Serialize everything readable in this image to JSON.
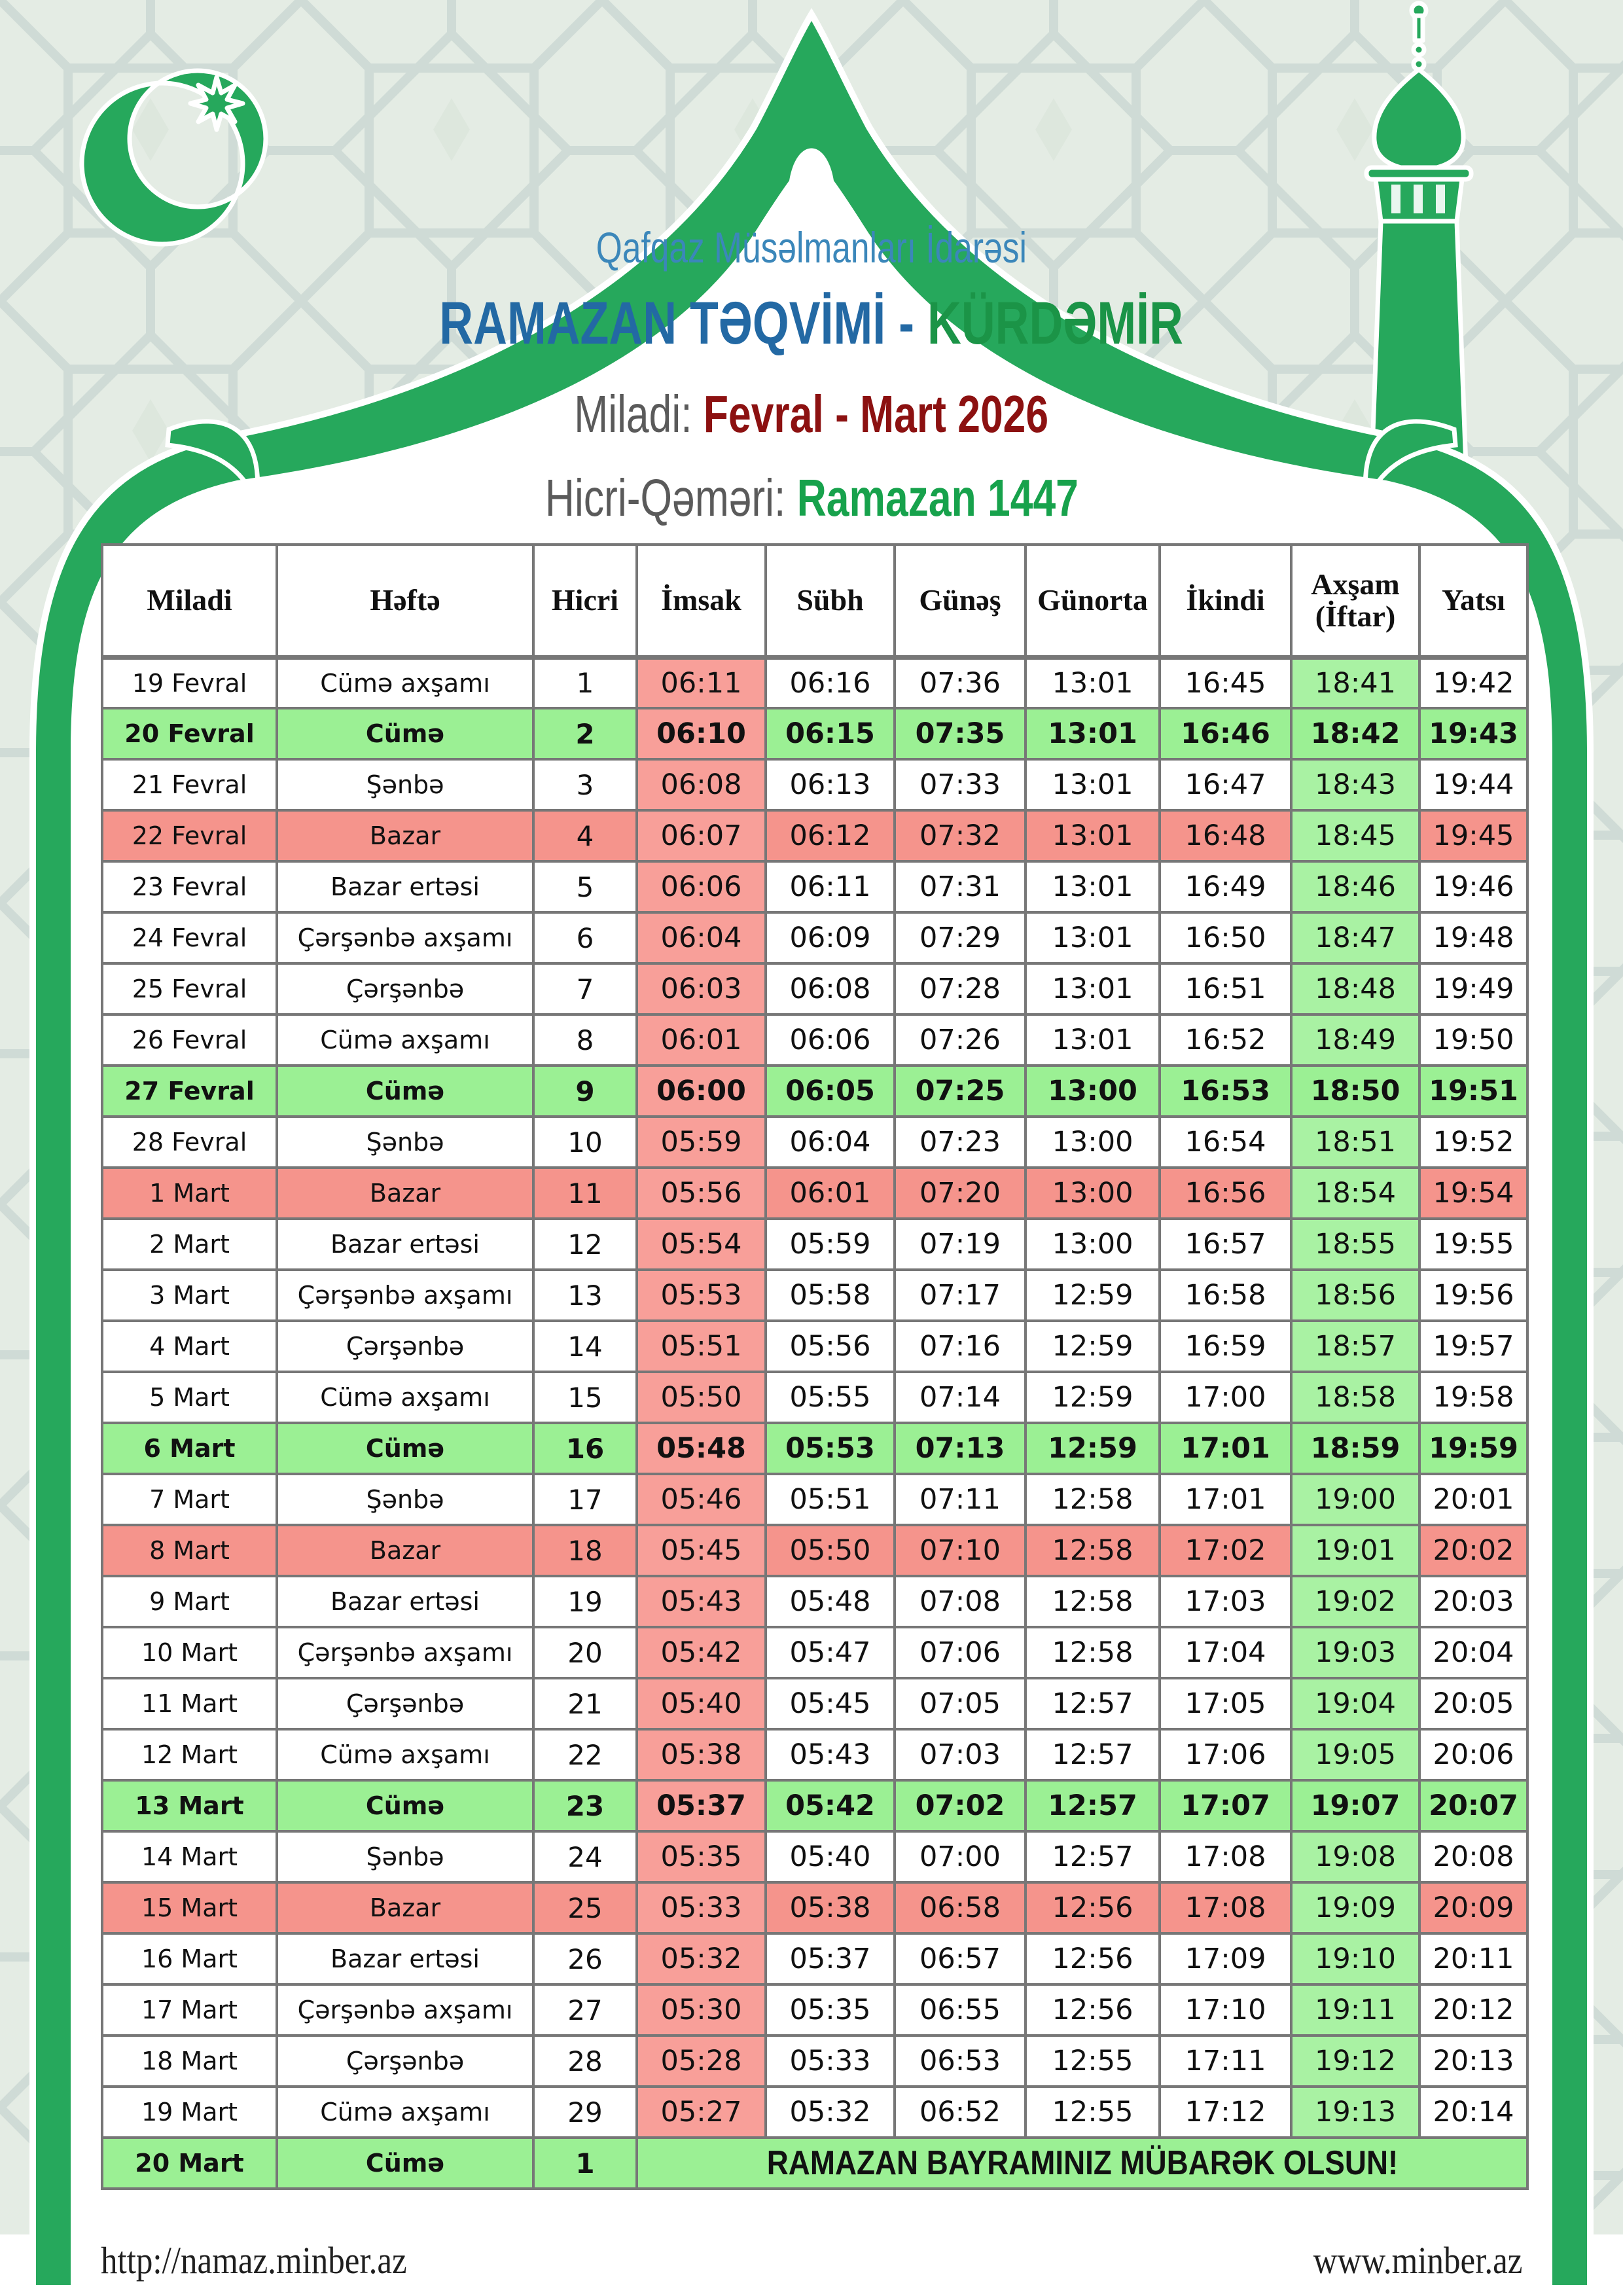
{
  "header": {
    "org": "Qafqaz Müsəlmanları İdarəsi",
    "title_main": "RAMAZAN TƏQVİMİ - ",
    "title_city": "KÜRDƏMİR",
    "miladi_label": "Miladi: ",
    "miladi_value": "Fevral - Mart 2026",
    "hicri_label": "Hicri-Qəməri: ",
    "hicri_value": "Ramazan 1447"
  },
  "table": {
    "headers": [
      "Miladi",
      "Həftə",
      "Hicri",
      "İmsak",
      "Sübh",
      "Günəş",
      "Günorta",
      "İkindi",
      "Axşam (İftar)",
      "Yatsı"
    ],
    "rows": [
      {
        "d": "19 Fevral",
        "w": "Cümə axşamı",
        "h": "1",
        "type": "normal",
        "t": [
          "06:11",
          "06:16",
          "07:36",
          "13:01",
          "16:45",
          "18:41",
          "19:42"
        ]
      },
      {
        "d": "20 Fevral",
        "w": "Cümə",
        "h": "2",
        "type": "friday",
        "t": [
          "06:10",
          "06:15",
          "07:35",
          "13:01",
          "16:46",
          "18:42",
          "19:43"
        ]
      },
      {
        "d": "21 Fevral",
        "w": "Şənbə",
        "h": "3",
        "type": "normal",
        "t": [
          "06:08",
          "06:13",
          "07:33",
          "13:01",
          "16:47",
          "18:43",
          "19:44"
        ]
      },
      {
        "d": "22 Fevral",
        "w": "Bazar",
        "h": "4",
        "type": "sunday",
        "t": [
          "06:07",
          "06:12",
          "07:32",
          "13:01",
          "16:48",
          "18:45",
          "19:45"
        ]
      },
      {
        "d": "23 Fevral",
        "w": "Bazar ertəsi",
        "h": "5",
        "type": "normal",
        "t": [
          "06:06",
          "06:11",
          "07:31",
          "13:01",
          "16:49",
          "18:46",
          "19:46"
        ]
      },
      {
        "d": "24 Fevral",
        "w": "Çərşənbə axşamı",
        "h": "6",
        "type": "normal",
        "t": [
          "06:04",
          "06:09",
          "07:29",
          "13:01",
          "16:50",
          "18:47",
          "19:48"
        ]
      },
      {
        "d": "25 Fevral",
        "w": "Çərşənbə",
        "h": "7",
        "type": "normal",
        "t": [
          "06:03",
          "06:08",
          "07:28",
          "13:01",
          "16:51",
          "18:48",
          "19:49"
        ]
      },
      {
        "d": "26 Fevral",
        "w": "Cümə axşamı",
        "h": "8",
        "type": "normal",
        "t": [
          "06:01",
          "06:06",
          "07:26",
          "13:01",
          "16:52",
          "18:49",
          "19:50"
        ]
      },
      {
        "d": "27 Fevral",
        "w": "Cümə",
        "h": "9",
        "type": "friday",
        "t": [
          "06:00",
          "06:05",
          "07:25",
          "13:00",
          "16:53",
          "18:50",
          "19:51"
        ]
      },
      {
        "d": "28 Fevral",
        "w": "Şənbə",
        "h": "10",
        "type": "normal",
        "t": [
          "05:59",
          "06:04",
          "07:23",
          "13:00",
          "16:54",
          "18:51",
          "19:52"
        ]
      },
      {
        "d": "1 Mart",
        "w": "Bazar",
        "h": "11",
        "type": "sunday",
        "t": [
          "05:56",
          "06:01",
          "07:20",
          "13:00",
          "16:56",
          "18:54",
          "19:54"
        ]
      },
      {
        "d": "2 Mart",
        "w": "Bazar ertəsi",
        "h": "12",
        "type": "normal",
        "t": [
          "05:54",
          "05:59",
          "07:19",
          "13:00",
          "16:57",
          "18:55",
          "19:55"
        ]
      },
      {
        "d": "3 Mart",
        "w": "Çərşənbə axşamı",
        "h": "13",
        "type": "normal",
        "t": [
          "05:53",
          "05:58",
          "07:17",
          "12:59",
          "16:58",
          "18:56",
          "19:56"
        ]
      },
      {
        "d": "4 Mart",
        "w": "Çərşənbə",
        "h": "14",
        "type": "normal",
        "t": [
          "05:51",
          "05:56",
          "07:16",
          "12:59",
          "16:59",
          "18:57",
          "19:57"
        ]
      },
      {
        "d": "5 Mart",
        "w": "Cümə axşamı",
        "h": "15",
        "type": "normal",
        "t": [
          "05:50",
          "05:55",
          "07:14",
          "12:59",
          "17:00",
          "18:58",
          "19:58"
        ]
      },
      {
        "d": "6 Mart",
        "w": "Cümə",
        "h": "16",
        "type": "friday",
        "t": [
          "05:48",
          "05:53",
          "07:13",
          "12:59",
          "17:01",
          "18:59",
          "19:59"
        ]
      },
      {
        "d": "7 Mart",
        "w": "Şənbə",
        "h": "17",
        "type": "normal",
        "t": [
          "05:46",
          "05:51",
          "07:11",
          "12:58",
          "17:01",
          "19:00",
          "20:01"
        ]
      },
      {
        "d": "8 Mart",
        "w": "Bazar",
        "h": "18",
        "type": "sunday",
        "t": [
          "05:45",
          "05:50",
          "07:10",
          "12:58",
          "17:02",
          "19:01",
          "20:02"
        ]
      },
      {
        "d": "9 Mart",
        "w": "Bazar ertəsi",
        "h": "19",
        "type": "normal",
        "t": [
          "05:43",
          "05:48",
          "07:08",
          "12:58",
          "17:03",
          "19:02",
          "20:03"
        ]
      },
      {
        "d": "10 Mart",
        "w": "Çərşənbə axşamı",
        "h": "20",
        "type": "normal",
        "t": [
          "05:42",
          "05:47",
          "07:06",
          "12:58",
          "17:04",
          "19:03",
          "20:04"
        ]
      },
      {
        "d": "11 Mart",
        "w": "Çərşənbə",
        "h": "21",
        "type": "normal",
        "t": [
          "05:40",
          "05:45",
          "07:05",
          "12:57",
          "17:05",
          "19:04",
          "20:05"
        ]
      },
      {
        "d": "12 Mart",
        "w": "Cümə axşamı",
        "h": "22",
        "type": "normal",
        "t": [
          "05:38",
          "05:43",
          "07:03",
          "12:57",
          "17:06",
          "19:05",
          "20:06"
        ]
      },
      {
        "d": "13 Mart",
        "w": "Cümə",
        "h": "23",
        "type": "friday",
        "t": [
          "05:37",
          "05:42",
          "07:02",
          "12:57",
          "17:07",
          "19:07",
          "20:07"
        ]
      },
      {
        "d": "14 Mart",
        "w": "Şənbə",
        "h": "24",
        "type": "normal",
        "t": [
          "05:35",
          "05:40",
          "07:00",
          "12:57",
          "17:08",
          "19:08",
          "20:08"
        ]
      },
      {
        "d": "15 Mart",
        "w": "Bazar",
        "h": "25",
        "type": "sunday",
        "t": [
          "05:33",
          "05:38",
          "06:58",
          "12:56",
          "17:08",
          "19:09",
          "20:09"
        ]
      },
      {
        "d": "16 Mart",
        "w": "Bazar ertəsi",
        "h": "26",
        "type": "normal",
        "t": [
          "05:32",
          "05:37",
          "06:57",
          "12:56",
          "17:09",
          "19:10",
          "20:11"
        ]
      },
      {
        "d": "17 Mart",
        "w": "Çərşənbə axşamı",
        "h": "27",
        "type": "normal",
        "t": [
          "05:30",
          "05:35",
          "06:55",
          "12:56",
          "17:10",
          "19:11",
          "20:12"
        ]
      },
      {
        "d": "18 Mart",
        "w": "Çərşənbə",
        "h": "28",
        "type": "normal",
        "t": [
          "05:28",
          "05:33",
          "06:53",
          "12:55",
          "17:11",
          "19:12",
          "20:13"
        ]
      },
      {
        "d": "19 Mart",
        "w": "Cümə axşamı",
        "h": "29",
        "type": "normal",
        "t": [
          "05:27",
          "05:32",
          "06:52",
          "12:55",
          "17:12",
          "19:13",
          "20:14"
        ]
      },
      {
        "d": "20 Mart",
        "w": "Cümə",
        "h": "1",
        "type": "friday",
        "bayram": "RAMAZAN BAYRAMINIZ MÜBARƏK OLSUN!"
      }
    ]
  },
  "footer": {
    "left": "http://namaz.minber.az",
    "right": "www.minber.az"
  },
  "colors": {
    "background": "#e4ece4",
    "pattern_line": "#c9d6d2",
    "frame_green": "#26a85c",
    "org_blue": "#3b87ba",
    "title_blue": "#2369a4",
    "city_green": "#1b9447",
    "label_gray": "#5a5a5a",
    "miladi_red": "#8c1111",
    "hicri_green": "#17a24c",
    "friday_row_bg": "#9bf094",
    "sunday_row_bg": "#f5948c",
    "imsak_col_bg": "#f89f99",
    "iftar_col_bg": "#a9f2a3",
    "table_border": "#777777"
  }
}
